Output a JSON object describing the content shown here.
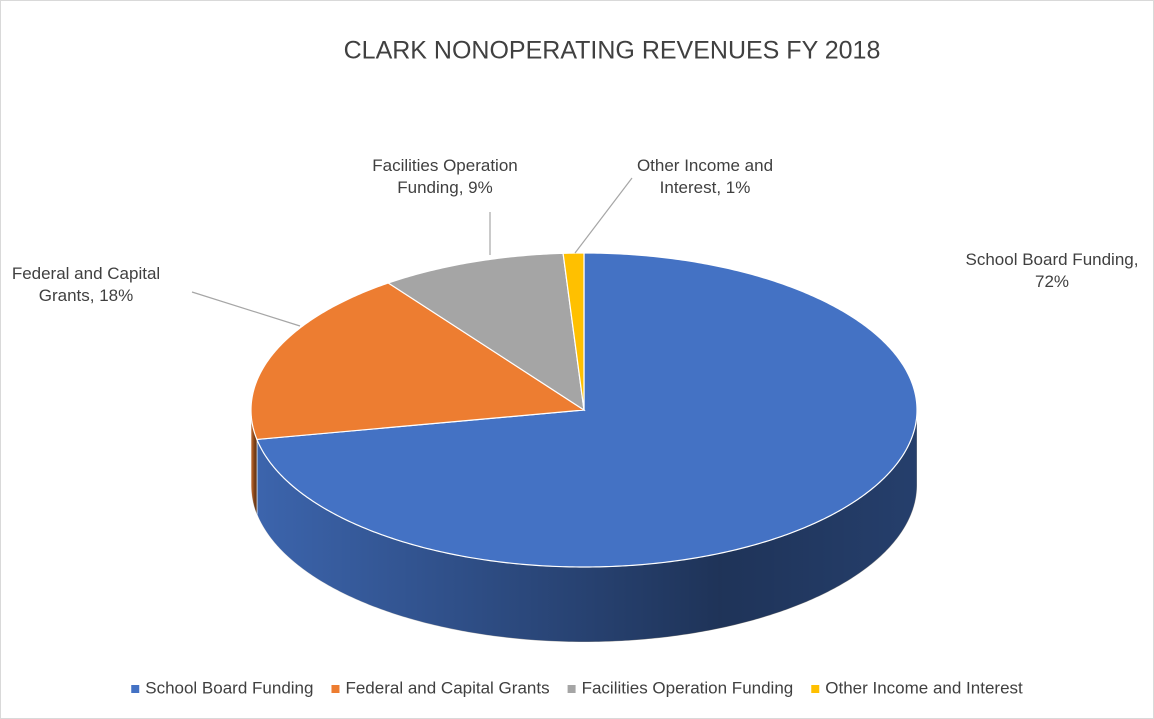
{
  "chart_data": {
    "type": "pie",
    "title": "CLARK NONOPERATING REVENUES FY 2018",
    "categories": [
      "School Board Funding",
      "Federal and Capital Grants",
      "Facilities Operation Funding",
      "Other Income and Interest"
    ],
    "values": [
      72,
      18,
      9,
      1
    ],
    "value_labels": [
      "School Board Funding, 72%",
      "Federal and Capital Grants, 18%",
      "Facilities Operation Funding, 9%",
      "Other Income and Interest, 1%"
    ],
    "colors": [
      "#4472c4",
      "#ed7d31",
      "#a5a5a5",
      "#ffc000"
    ],
    "legend": "bottom"
  }
}
